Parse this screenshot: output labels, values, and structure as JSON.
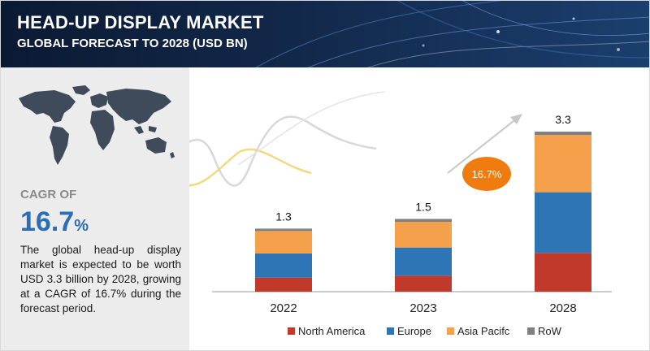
{
  "header": {
    "title": "HEAD-UP DISPLAY MARKET",
    "subtitle": "GLOBAL FORECAST TO 2028 (USD BN)"
  },
  "sidebar": {
    "cagr_label": "CAGR OF",
    "cagr_number": "16.7",
    "cagr_percent_sign": "%",
    "description": "The global head-up display market is expected to be worth USD 3.3 billion by 2028, growing at a CAGR of 16.7% during the forecast period."
  },
  "colors": {
    "north_america": "#c0392b",
    "europe": "#2e75b6",
    "asia_pacific": "#f5a04a",
    "row": "#808080",
    "cagr_bubble": "#f07c10",
    "accent_blue": "#2a6fb5"
  },
  "chart_data": {
    "type": "bar",
    "stacked": true,
    "categories": [
      "2022",
      "2023",
      "2028"
    ],
    "totals": [
      "1.3",
      "1.5",
      "3.3"
    ],
    "series": [
      {
        "name": "North America",
        "values": [
          0.29,
          0.33,
          0.8
        ]
      },
      {
        "name": "Europe",
        "values": [
          0.5,
          0.58,
          1.25
        ]
      },
      {
        "name": "Asia Pacifc",
        "values": [
          0.46,
          0.53,
          1.18
        ]
      },
      {
        "name": "RoW",
        "values": [
          0.05,
          0.06,
          0.07
        ]
      }
    ],
    "annotation": "16.7%",
    "ylim": [
      0,
      3.3
    ],
    "grid": false,
    "legend_position": "bottom"
  }
}
